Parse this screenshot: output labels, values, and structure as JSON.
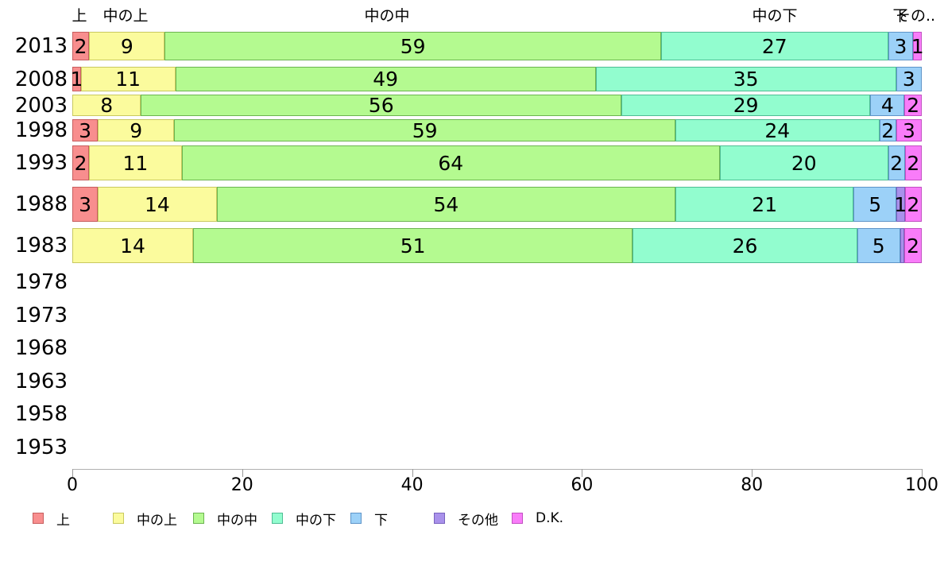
{
  "chart_data": {
    "type": "bar",
    "stacked": true,
    "orientation": "horizontal",
    "title": "",
    "xlabel": "",
    "ylabel": "",
    "x_axis": {
      "range": [
        0,
        100
      ],
      "ticks": [
        0,
        20,
        40,
        60,
        80,
        100
      ],
      "grid": false
    },
    "series": [
      "上",
      "中の上",
      "中の中",
      "中の下",
      "下",
      "その他",
      "D.K."
    ],
    "colors": {
      "上": {
        "fill": "#f88e8e",
        "border": "#c75e5e"
      },
      "中の上": {
        "fill": "#fbfb9d",
        "border": "#c9c95f"
      },
      "中の中": {
        "fill": "#b4fa90",
        "border": "#6cb450"
      },
      "中の下": {
        "fill": "#92fdcf",
        "border": "#4fbd94"
      },
      "下": {
        "fill": "#9cd1f8",
        "border": "#5e94c8"
      },
      "その他": {
        "fill": "#a991eb",
        "border": "#7863be"
      },
      "D.K.": {
        "fill": "#f97cf9",
        "border": "#c250c2"
      }
    },
    "top_labels": [
      {
        "text": "上"
      },
      {
        "text": "中の上"
      },
      {
        "text": "中の中"
      },
      {
        "text": "中の下"
      },
      {
        "text": "下"
      },
      {
        "text": "その.."
      }
    ],
    "categories": [
      "2013",
      "2008",
      "2003",
      "1998",
      "1993",
      "1988",
      "1983",
      "1978",
      "1973",
      "1968",
      "1963",
      "1958",
      "1953"
    ],
    "rows": [
      {
        "year": "2013",
        "segments": [
          [
            "上",
            2
          ],
          [
            "中の上",
            9
          ],
          [
            "中の中",
            59
          ],
          [
            "中の下",
            27
          ],
          [
            "下",
            3
          ],
          [
            "D.K.",
            1
          ]
        ]
      },
      {
        "year": "2008",
        "segments": [
          [
            "上",
            1
          ],
          [
            "中の上",
            11
          ],
          [
            "中の中",
            49
          ],
          [
            "中の下",
            35
          ],
          [
            "下",
            3
          ]
        ]
      },
      {
        "year": "2003",
        "segments": [
          [
            "中の上",
            8
          ],
          [
            "中の中",
            56
          ],
          [
            "中の下",
            29
          ],
          [
            "下",
            4
          ],
          [
            "D.K.",
            2
          ]
        ]
      },
      {
        "year": "1998",
        "segments": [
          [
            "上",
            3
          ],
          [
            "中の上",
            9
          ],
          [
            "中の中",
            59
          ],
          [
            "中の下",
            24
          ],
          [
            "下",
            2
          ],
          [
            "D.K.",
            3
          ]
        ]
      },
      {
        "year": "1993",
        "segments": [
          [
            "上",
            2
          ],
          [
            "中の上",
            11
          ],
          [
            "中の中",
            64
          ],
          [
            "中の下",
            20
          ],
          [
            "下",
            2
          ],
          [
            "D.K.",
            2
          ]
        ]
      },
      {
        "year": "1988",
        "segments": [
          [
            "上",
            3
          ],
          [
            "中の上",
            14
          ],
          [
            "中の中",
            54
          ],
          [
            "中の下",
            21
          ],
          [
            "下",
            5
          ],
          [
            "その他",
            1
          ],
          [
            "D.K.",
            2
          ]
        ]
      },
      {
        "year": "1983",
        "segments": [
          [
            "中の上",
            14
          ],
          [
            "中の中",
            51
          ],
          [
            "中の下",
            26
          ],
          [
            "下",
            5
          ],
          [
            "その他",
            0.5
          ],
          [
            "D.K.",
            2
          ]
        ]
      },
      {
        "year": "1978",
        "segments": []
      },
      {
        "year": "1973",
        "segments": []
      },
      {
        "year": "1968",
        "segments": []
      },
      {
        "year": "1963",
        "segments": []
      },
      {
        "year": "1958",
        "segments": []
      },
      {
        "year": "1953",
        "segments": []
      }
    ],
    "legend": [
      {
        "series": "上",
        "label": "上"
      },
      {
        "series": "中の上",
        "label": "中の上"
      },
      {
        "series": "中の中",
        "label": "中の中"
      },
      {
        "series": "中の下",
        "label": "中の下"
      },
      {
        "series": "下",
        "label": "下"
      },
      {
        "series": "その他",
        "label": "その他"
      },
      {
        "series": "D.K.",
        "label": "D.K."
      }
    ]
  }
}
